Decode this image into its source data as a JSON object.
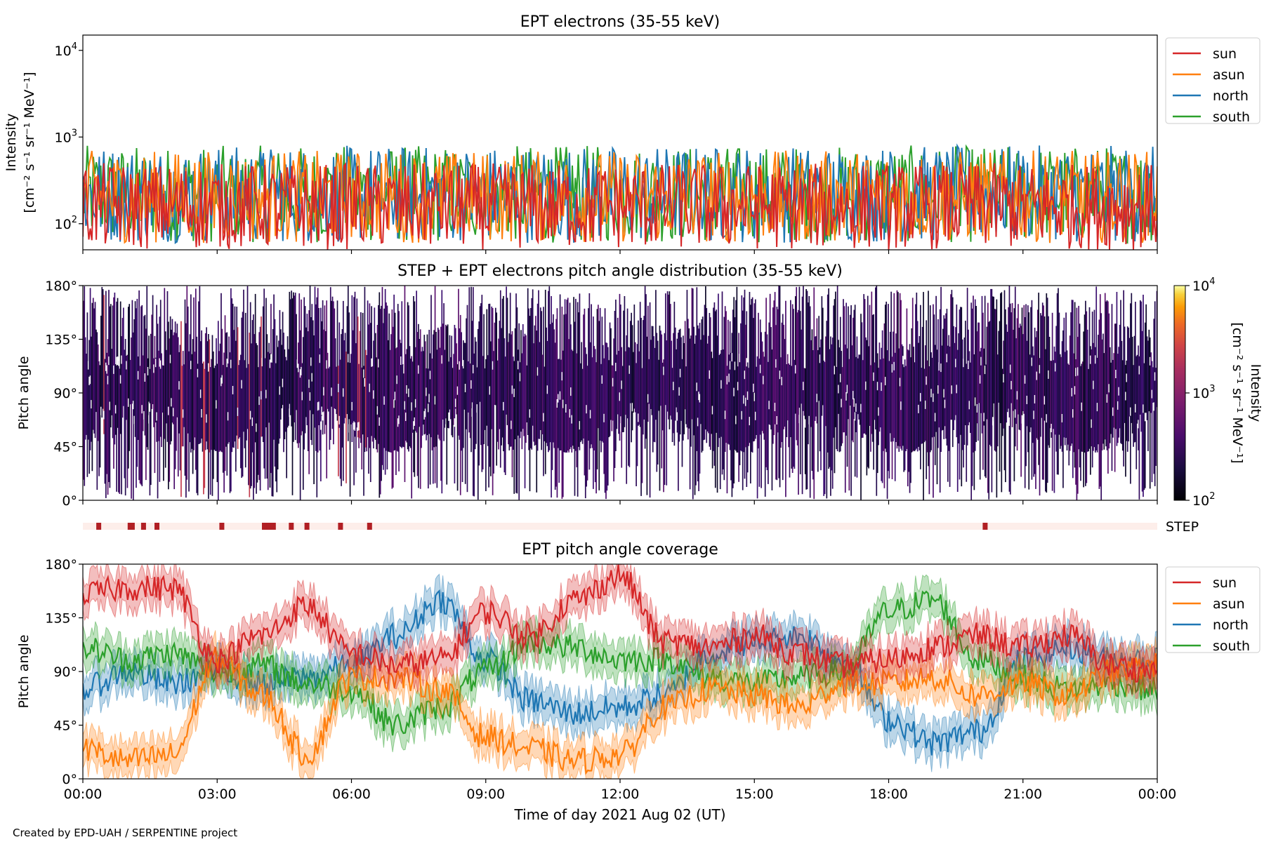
{
  "figure": {
    "credit": "Created by EPD-UAH / SERPENTINE project",
    "xlabel": "Time of day 2021 Aug 02 (UT)",
    "x_ticks": [
      "00:00",
      "03:00",
      "06:00",
      "09:00",
      "12:00",
      "15:00",
      "18:00",
      "21:00",
      "00:00"
    ]
  },
  "colors": {
    "sun": "#d62728",
    "asun": "#ff7f0e",
    "north": "#1f77b4",
    "south": "#2ca02c"
  },
  "chart_data": [
    {
      "type": "line",
      "title": "EPT electrons (35-55 keV)",
      "ylabel_line1": "Intensity",
      "ylabel_line2": "[cm⁻² s⁻¹ sr⁻¹ MeV⁻¹]",
      "yscale": "log",
      "ylim": [
        50,
        15000
      ],
      "y_ticks": [
        {
          "value": 100,
          "base": "10",
          "exp": "2"
        },
        {
          "value": 1000,
          "base": "10",
          "exp": "3"
        },
        {
          "value": 10000,
          "base": "10",
          "exp": "4"
        }
      ],
      "x_range_hours": [
        0,
        24
      ],
      "legend_position": "right",
      "series": [
        {
          "name": "sun",
          "typical_range": [
            50,
            500
          ]
        },
        {
          "name": "asun",
          "typical_range": [
            60,
            700
          ]
        },
        {
          "name": "north",
          "typical_range": [
            60,
            800
          ]
        },
        {
          "name": "south",
          "typical_range": [
            60,
            800
          ]
        }
      ]
    },
    {
      "type": "heatmap",
      "title": "STEP + EPT electrons pitch angle distribution (35-55 keV)",
      "ylabel": "Pitch angle",
      "ylim": [
        0,
        180
      ],
      "y_ticks": [
        "0°",
        "45°",
        "90°",
        "135°",
        "180°"
      ],
      "colorbar": {
        "label_line1": "Intensity",
        "label_line2": "[cm⁻² s⁻¹ sr⁻¹ MeV⁻¹]",
        "scale": "log",
        "range": [
          100,
          10000
        ],
        "ticks": [
          {
            "value": 100,
            "base": "10",
            "exp": "2"
          },
          {
            "value": 1000,
            "base": "10",
            "exp": "3"
          },
          {
            "value": 10000,
            "base": "10",
            "exp": "4"
          }
        ]
      }
    },
    {
      "type": "bar",
      "label": "STEP",
      "marker_hours": [
        0.3,
        1.0,
        1.05,
        1.3,
        1.6,
        3.05,
        4.0,
        4.1,
        4.2,
        4.6,
        4.95,
        5.7,
        6.35,
        20.1
      ]
    },
    {
      "type": "line",
      "title": "EPT pitch angle coverage",
      "ylabel": "Pitch angle",
      "ylim": [
        0,
        180
      ],
      "y_ticks": [
        "0°",
        "45°",
        "90°",
        "135°",
        "180°"
      ],
      "legend_position": "right",
      "series": [
        {
          "name": "sun",
          "anchors_hours": [
            0,
            1,
            2,
            3,
            4,
            5,
            6,
            7,
            8,
            9,
            10,
            11,
            12,
            13,
            14,
            15,
            16,
            17,
            18,
            19,
            20,
            21,
            22,
            23,
            24
          ],
          "anchors_deg": [
            155,
            160,
            160,
            100,
            120,
            145,
            105,
            95,
            100,
            140,
            120,
            150,
            170,
            115,
            110,
            120,
            105,
            95,
            100,
            110,
            120,
            110,
            120,
            95,
            90
          ]
        },
        {
          "name": "asun",
          "anchors_hours": [
            0,
            1,
            2,
            3,
            4,
            5,
            6,
            7,
            8,
            9,
            10,
            11,
            12,
            13,
            14,
            15,
            16,
            17,
            18,
            19,
            20,
            21,
            22,
            23,
            24
          ],
          "anchors_deg": [
            25,
            15,
            20,
            100,
            70,
            20,
            85,
            85,
            75,
            35,
            25,
            15,
            20,
            60,
            75,
            70,
            60,
            80,
            80,
            85,
            70,
            80,
            70,
            90,
            95
          ]
        },
        {
          "name": "north",
          "anchors_hours": [
            0,
            1,
            2,
            3,
            4,
            5,
            6,
            7,
            8,
            9,
            10,
            11,
            12,
            13,
            14,
            15,
            16,
            17,
            18,
            19,
            20,
            21,
            22,
            23,
            24
          ],
          "anchors_deg": [
            75,
            90,
            80,
            90,
            80,
            85,
            95,
            120,
            150,
            100,
            65,
            55,
            60,
            70,
            105,
            115,
            120,
            100,
            50,
            30,
            40,
            100,
            110,
            100,
            100
          ]
        },
        {
          "name": "south",
          "anchors_hours": [
            0,
            1,
            2,
            3,
            4,
            5,
            6,
            7,
            8,
            9,
            10,
            11,
            12,
            13,
            14,
            15,
            16,
            17,
            18,
            19,
            20,
            21,
            22,
            23,
            24
          ],
          "anchors_deg": [
            110,
            100,
            105,
            90,
            95,
            80,
            75,
            45,
            60,
            90,
            115,
            110,
            100,
            100,
            85,
            80,
            85,
            90,
            140,
            150,
            100,
            85,
            75,
            80,
            75
          ]
        }
      ]
    }
  ]
}
